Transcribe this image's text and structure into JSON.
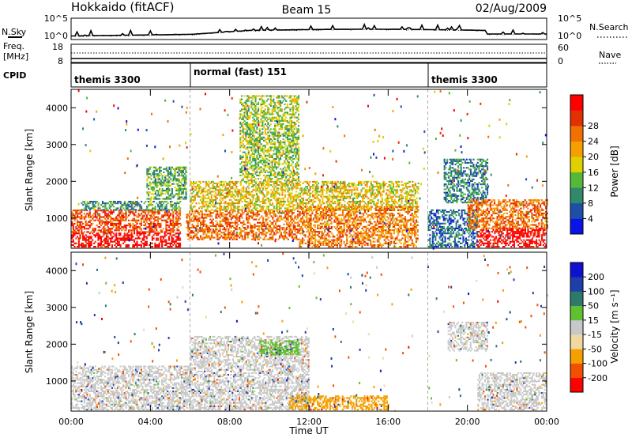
{
  "header": {
    "title": "Hokkaido (fitACF)",
    "beam": "Beam 15",
    "date": "02/Aug/2009"
  },
  "top_panels": {
    "nsky_label": "N.Sky",
    "nsky_left_ticks": [
      "10^5",
      "10^0"
    ],
    "nsearch_label": "N.Search",
    "nsearch_right_ticks": [
      "10^5",
      "10^0"
    ],
    "freq_label_1": "Freq.",
    "freq_label_2": "[MHz]",
    "freq_ticks": [
      "18",
      "8"
    ],
    "nave_label": "Nave",
    "nave_ticks": [
      "60",
      "0"
    ],
    "cpid_label": "CPID",
    "cpid_segments": [
      {
        "label": "themis 3300",
        "start": 0,
        "end": 6
      },
      {
        "label": "normal (fast) 151",
        "start": 6,
        "end": 18
      },
      {
        "label": "themis 3300",
        "start": 18,
        "end": 24
      }
    ]
  },
  "power_panel": {
    "ylabel": "Slant Range [km]",
    "y_ticks": [
      "1000",
      "2000",
      "3000",
      "4000"
    ],
    "colorbar_label": "Power [dB]",
    "colorbar_ticks": [
      "4",
      "8",
      "12",
      "16",
      "20",
      "24",
      "28"
    ],
    "colorbar_colors": [
      "#0a14e6",
      "#1e4fa8",
      "#2e8a6a",
      "#55b838",
      "#e0d000",
      "#f5a000",
      "#f07000",
      "#e23000",
      "#ff0000"
    ]
  },
  "velocity_panel": {
    "ylabel": "Slant Range [km]",
    "y_ticks": [
      "1000",
      "2000",
      "3000",
      "4000"
    ],
    "colorbar_label": "Velocity [m s⁻¹]",
    "colorbar_ticks": [
      "-200",
      "-100",
      "-50",
      "-15",
      "15",
      "50",
      "100",
      "200"
    ],
    "colorbar_colors": [
      "#ff0000",
      "#f05000",
      "#f5a000",
      "#f0d8a0",
      "#c8c8c8",
      "#60c030",
      "#2e7a6a",
      "#1e3fa8",
      "#1010d0"
    ],
    "ground_scatter_color": "#c0c0c0"
  },
  "x_axis": {
    "label": "Time UT",
    "ticks": [
      "00:00",
      "04:00",
      "08:00",
      "12:00",
      "16:00",
      "20:00",
      "00:00"
    ]
  },
  "chart_data": {
    "type": "heatmap",
    "title": "Hokkaido (fitACF)",
    "x": [
      "00:00",
      "04:00",
      "08:00",
      "12:00",
      "16:00",
      "20:00",
      "00:00"
    ],
    "xlabel": "Time UT",
    "ylabel": "Slant Range [km]",
    "xlim_hours": [
      0,
      24
    ],
    "ylim_km": [
      180,
      4500
    ],
    "series": [
      {
        "name": "Power [dB]",
        "zlim": [
          0,
          30
        ],
        "blobs": [
          {
            "t0": 0.0,
            "t1": 5.5,
            "r0": 200,
            "r1": 600,
            "level": 29
          },
          {
            "t0": 0.0,
            "t1": 5.5,
            "r0": 600,
            "r1": 1200,
            "level": 24
          },
          {
            "t0": 0.5,
            "t1": 5.5,
            "r0": 1200,
            "r1": 1450,
            "level": 9
          },
          {
            "t0": 3.8,
            "t1": 5.8,
            "r0": 1500,
            "r1": 2400,
            "level": 11
          },
          {
            "t0": 5.8,
            "t1": 11.5,
            "r0": 400,
            "r1": 1200,
            "level": 22
          },
          {
            "t0": 6.0,
            "t1": 17.5,
            "r0": 1200,
            "r1": 2000,
            "level": 16
          },
          {
            "t0": 8.5,
            "t1": 11.5,
            "r0": 2000,
            "r1": 4300,
            "level": 13
          },
          {
            "t0": 11.5,
            "t1": 17.5,
            "r0": 200,
            "r1": 1300,
            "level": 21
          },
          {
            "t0": 18.0,
            "t1": 20.5,
            "r0": 200,
            "r1": 1200,
            "level": 6
          },
          {
            "t0": 18.8,
            "t1": 21.0,
            "r0": 1400,
            "r1": 2600,
            "level": 8
          },
          {
            "t0": 20.5,
            "t1": 24.0,
            "r0": 200,
            "r1": 700,
            "level": 29
          },
          {
            "t0": 20.0,
            "t1": 24.0,
            "r0": 700,
            "r1": 1500,
            "level": 22
          }
        ]
      },
      {
        "name": "Velocity [m s-1]",
        "zlim": [
          -250,
          250
        ],
        "blobs": [
          {
            "t0": 0.0,
            "t1": 6.0,
            "r0": 200,
            "r1": 1400,
            "level": 0
          },
          {
            "t0": 6.0,
            "t1": 12.0,
            "r0": 200,
            "r1": 2200,
            "level": 0
          },
          {
            "t0": 9.5,
            "t1": 11.5,
            "r0": 1700,
            "r1": 2100,
            "level": 40
          },
          {
            "t0": 11.0,
            "t1": 16.0,
            "r0": 200,
            "r1": 600,
            "level": -60
          },
          {
            "t0": 19.0,
            "t1": 21.0,
            "r0": 1800,
            "r1": 2600,
            "level": 0
          },
          {
            "t0": 20.5,
            "t1": 24.0,
            "r0": 200,
            "r1": 1200,
            "level": 0
          }
        ]
      }
    ]
  }
}
